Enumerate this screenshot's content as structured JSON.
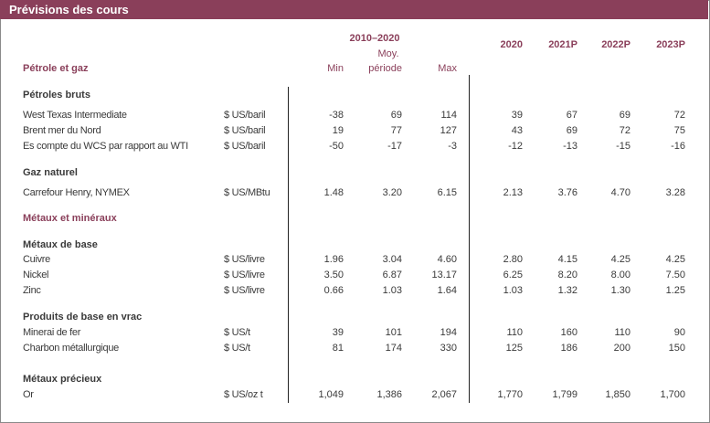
{
  "title": "Prévisions des cours",
  "header": {
    "section_label": "Pétrole et gaz",
    "period_label": "2010–2020",
    "min": "Min",
    "avg_line1": "Moy.",
    "avg_line2": "période",
    "max": "Max",
    "y2020": "2020",
    "y2021": "2021P",
    "y2022": "2022P",
    "y2023": "2023P"
  },
  "groups": {
    "petroles_bruts": "Pétroles bruts",
    "gaz_naturel": "Gaz naturel",
    "metaux_mineraux": "Métaux et minéraux",
    "metaux_base": "Métaux de base",
    "produits_vrac": "Produits de base en vrac",
    "metaux_precieux": "Métaux précieux"
  },
  "rows": {
    "wti": {
      "name": "West Texas Intermediate",
      "unit": "$ US/baril",
      "min": "-38",
      "avg": "69",
      "max": "114",
      "v2020": "39",
      "v2021": "67",
      "v2022": "69",
      "v2023": "72"
    },
    "brent": {
      "name": "Brent mer du Nord",
      "unit": "$ US/baril",
      "min": "19",
      "avg": "77",
      "max": "127",
      "v2020": "43",
      "v2021": "69",
      "v2022": "72",
      "v2023": "75"
    },
    "wcs": {
      "name": "Es compte du WCS par rapport au WTI",
      "unit": "$ US/baril",
      "min": "-50",
      "avg": "-17",
      "max": "-3",
      "v2020": "-12",
      "v2021": "-13",
      "v2022": "-15",
      "v2023": "-16"
    },
    "henry": {
      "name": "Carrefour Henry, NYMEX",
      "unit": "$ US/MBtu",
      "min": "1.48",
      "avg": "3.20",
      "max": "6.15",
      "v2020": "2.13",
      "v2021": "3.76",
      "v2022": "4.70",
      "v2023": "3.28"
    },
    "cuivre": {
      "name": "Cuivre",
      "unit": "$ US/livre",
      "min": "1.96",
      "avg": "3.04",
      "max": "4.60",
      "v2020": "2.80",
      "v2021": "4.15",
      "v2022": "4.25",
      "v2023": "4.25"
    },
    "nickel": {
      "name": "Nickel",
      "unit": "$ US/livre",
      "min": "3.50",
      "avg": "6.87",
      "max": "13.17",
      "v2020": "6.25",
      "v2021": "8.20",
      "v2022": "8.00",
      "v2023": "7.50"
    },
    "zinc": {
      "name": "Zinc",
      "unit": "$ US/livre",
      "min": "0.66",
      "avg": "1.03",
      "max": "1.64",
      "v2020": "1.03",
      "v2021": "1.32",
      "v2022": "1.30",
      "v2023": "1.25"
    },
    "fer": {
      "name": "Minerai de fer",
      "unit": "$ US/t",
      "min": "39",
      "avg": "101",
      "max": "194",
      "v2020": "110",
      "v2021": "160",
      "v2022": "110",
      "v2023": "90"
    },
    "charbon": {
      "name": "Charbon métallurgique",
      "unit": "$ US/t",
      "min": "81",
      "avg": "174",
      "max": "330",
      "v2020": "125",
      "v2021": "186",
      "v2022": "200",
      "v2023": "150"
    },
    "or": {
      "name": "Or",
      "unit": "$ US/oz t",
      "min": "1,049",
      "avg": "1,386",
      "max": "2,067",
      "v2020": "1,770",
      "v2021": "1,799",
      "v2022": "1,850",
      "v2023": "1,700"
    }
  },
  "colors": {
    "accent": "#8a3f5a",
    "text": "#3a3a3a"
  }
}
